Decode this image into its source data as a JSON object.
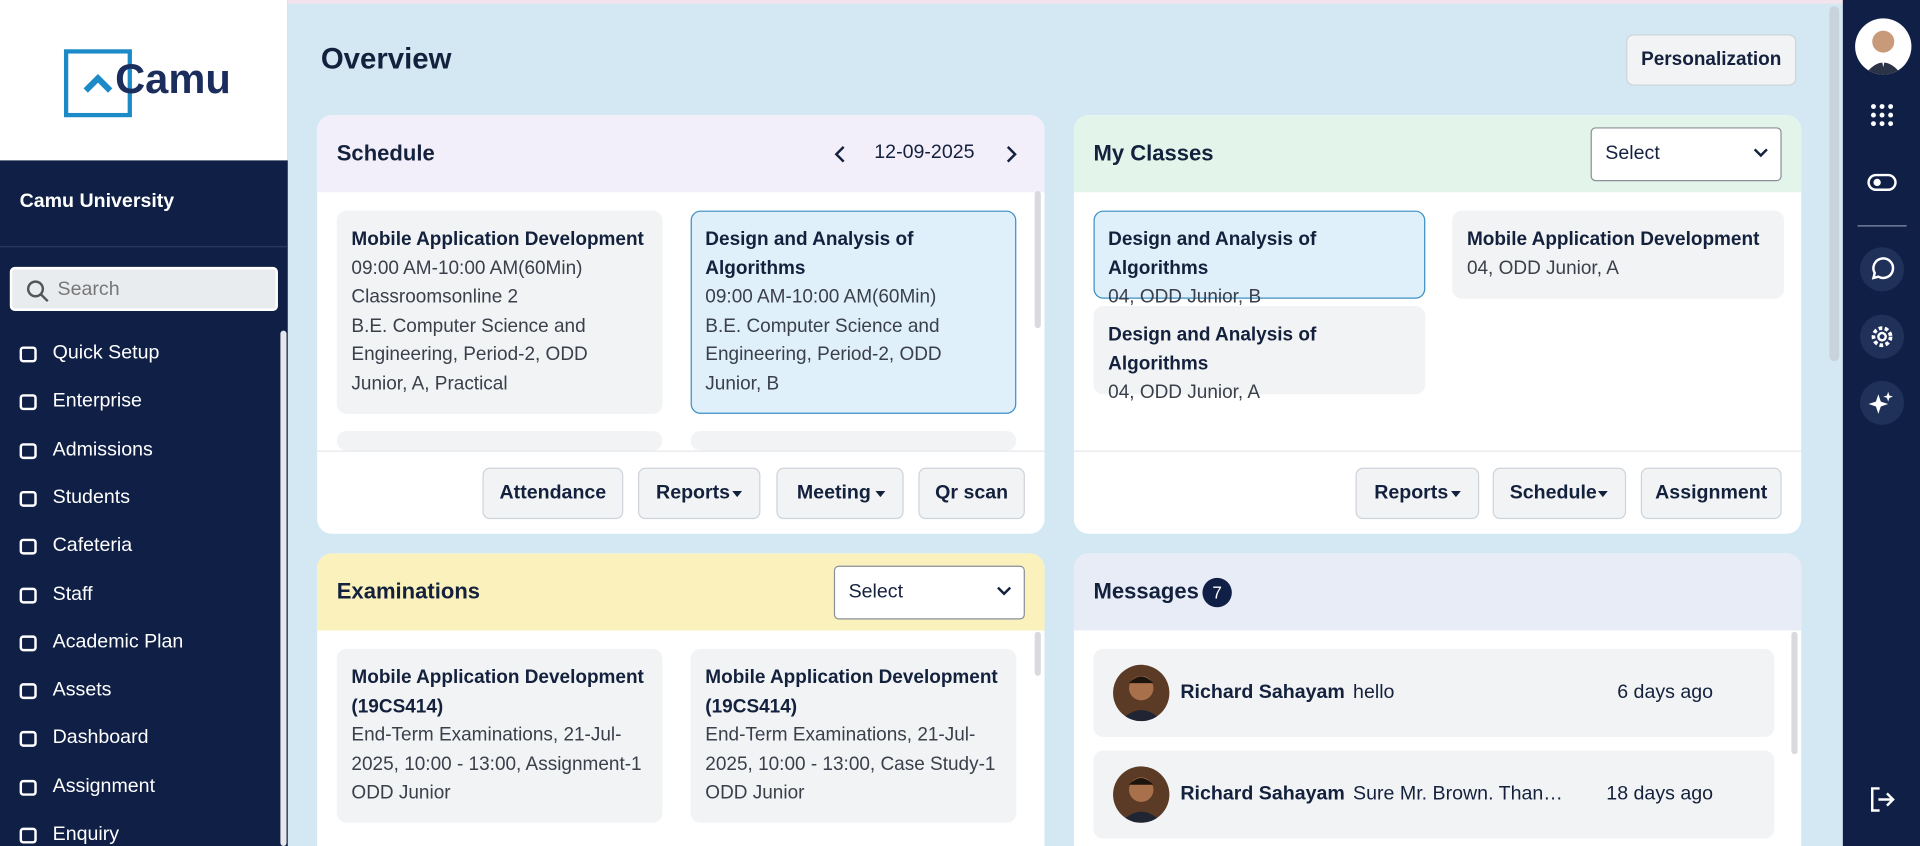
{
  "brand": {
    "logo": "Camu",
    "university": "Camu University"
  },
  "sidebar": {
    "search_placeholder": "Search",
    "menu": [
      "Quick Setup",
      "Enterprise",
      "Admissions",
      "Students",
      "Cafeteria",
      "Staff",
      "Academic Plan",
      "Assets",
      "Dashboard",
      "Assignment",
      "Enquiry"
    ]
  },
  "header": {
    "title": "Overview",
    "button": "Personalization"
  },
  "schedule": {
    "title": "Schedule",
    "date": "12-09-2025",
    "cards": [
      {
        "title": "Mobile Application Development",
        "lines": [
          "09:00 AM-10:00 AM(60Min)",
          "Classroomsonline 2",
          "B.E. Computer Science and Engineering, Period-2, ODD Junior, A, Practical"
        ]
      },
      {
        "title": "Design and Analysis of Algorithms",
        "lines": [
          "09:00 AM-10:00 AM(60Min)",
          "B.E. Computer Science and Engineering, Period-2, ODD Junior, B"
        ]
      }
    ],
    "buttons": [
      "Attendance",
      "Reports",
      "Meeting",
      "Qr scan"
    ]
  },
  "my_classes": {
    "title": "My Classes",
    "select": "Select",
    "cards": [
      {
        "title": "Design and Analysis of Algorithms",
        "subtitle": "04, ODD Junior, B"
      },
      {
        "title": "Mobile Application Development",
        "subtitle": "04, ODD Junior, A"
      },
      {
        "title": "Design and Analysis of Algorithms",
        "subtitle": "04, ODD Junior, A"
      }
    ],
    "buttons": [
      "Reports",
      "Schedule",
      "Assignment"
    ]
  },
  "examinations": {
    "title": "Examinations",
    "select": "Select",
    "cards": [
      {
        "title": "Mobile Application Development (19CS414)",
        "detail": "End-Term Examinations, 21-Jul-2025, 10:00 - 13:00, Assignment-1",
        "group": "ODD Junior"
      },
      {
        "title": "Mobile Application Development (19CS414)",
        "detail": "End-Term Examinations, 21-Jul-2025, 10:00 - 13:00, Case Study-1",
        "group": "ODD Junior"
      }
    ]
  },
  "messages": {
    "title": "Messages",
    "count": 7,
    "items": [
      {
        "name": "Richard Sahayam",
        "text": "hello",
        "time": "6 days ago"
      },
      {
        "name": "Richard Sahayam",
        "text": "Sure Mr. Brown. Than…",
        "time": "18 days ago"
      }
    ]
  }
}
